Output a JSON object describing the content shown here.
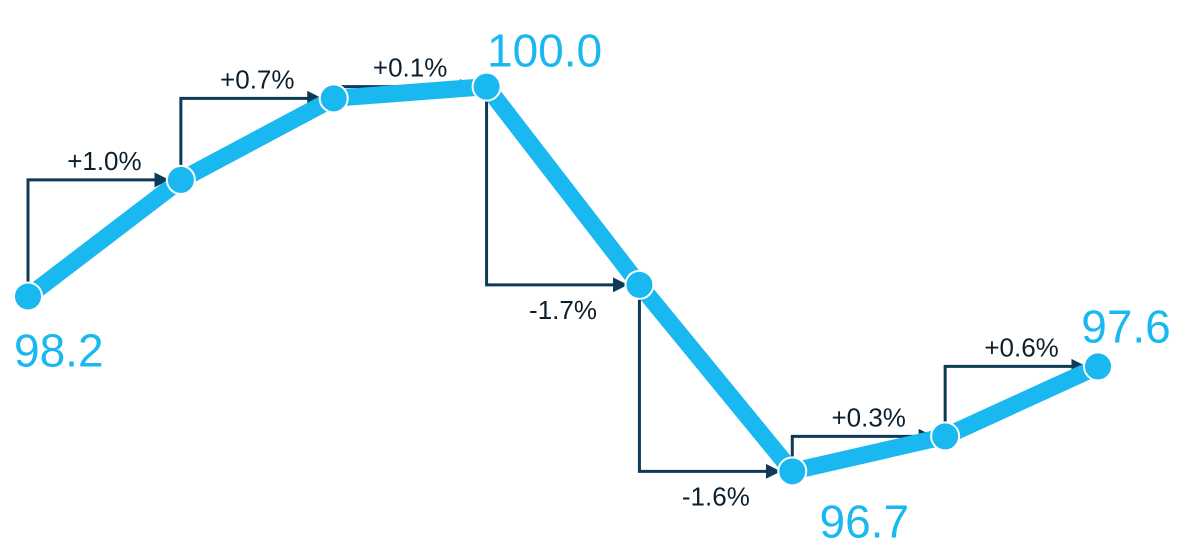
{
  "chart_data": {
    "type": "line",
    "x": [
      1,
      2,
      3,
      4,
      5,
      6,
      7,
      8
    ],
    "values": [
      98.2,
      99.2,
      99.9,
      100.0,
      98.3,
      96.7,
      97.0,
      97.6
    ],
    "changes": [
      {
        "from": 0,
        "to": 1,
        "label": "+1.0%"
      },
      {
        "from": 1,
        "to": 2,
        "label": "+0.7%"
      },
      {
        "from": 2,
        "to": 3,
        "label": "+0.1%"
      },
      {
        "from": 3,
        "to": 4,
        "label": "-1.7%"
      },
      {
        "from": 4,
        "to": 5,
        "label": "-1.6%"
      },
      {
        "from": 5,
        "to": 6,
        "label": "+0.3%"
      },
      {
        "from": 6,
        "to": 7,
        "label": "+0.6%"
      }
    ],
    "value_labels": [
      {
        "index": 0,
        "text": "98.2"
      },
      {
        "index": 3,
        "text": "100.0"
      },
      {
        "index": 5,
        "text": "96.7"
      },
      {
        "index": 7,
        "text": "97.6"
      }
    ],
    "ylim": [
      96.6,
      100.1
    ],
    "grid": false,
    "legend": "none",
    "colors": {
      "line": "#1ab8f0",
      "arrow": "#0d3a55",
      "value_text": "#1ab8f0",
      "change_text": "#0d1f2d"
    }
  }
}
